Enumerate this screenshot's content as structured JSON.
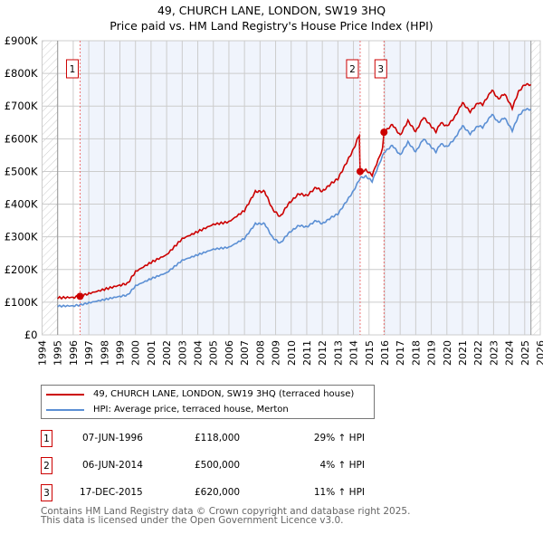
{
  "title": "49, CHURCH LANE, LONDON, SW19 3HQ",
  "subtitle": "Price paid vs. HM Land Registry's House Price Index (HPI)",
  "chart_data": {
    "type": "line",
    "xlim": [
      1994,
      2026
    ],
    "ylim": [
      0,
      900000
    ],
    "yticks": [
      0,
      100000,
      200000,
      300000,
      400000,
      500000,
      600000,
      700000,
      800000,
      900000
    ],
    "ytick_labels": [
      "£0",
      "£100K",
      "£200K",
      "£300K",
      "£400K",
      "£500K",
      "£600K",
      "£700K",
      "£800K",
      "£900K"
    ],
    "xtick_labels": [
      "1994",
      "1995",
      "1996",
      "1997",
      "1998",
      "1999",
      "2000",
      "2001",
      "2002",
      "2003",
      "2004",
      "2005",
      "2006",
      "2007",
      "2008",
      "2009",
      "2010",
      "2011",
      "2012",
      "2013",
      "2014",
      "2015",
      "2016",
      "2017",
      "2018",
      "2019",
      "2020",
      "2021",
      "2022",
      "2023",
      "2024",
      "2025",
      "2026"
    ],
    "data_range": [
      1995,
      2025.4
    ],
    "series": [
      {
        "name": "49, CHURCH LANE, LONDON, SW19 3HQ (terraced house)",
        "color": "#cc0000",
        "derived": "hpi_scaled_by_sale"
      },
      {
        "name": "HPI: Average price, terraced house, Merton",
        "color": "#5b8fd4",
        "x": [
          1995,
          1996,
          1996.44,
          1997,
          1998,
          1999,
          1999.5,
          2000,
          2001,
          2002,
          2003,
          2004,
          2005,
          2006,
          2007,
          2007.7,
          2008.3,
          2008.8,
          2009.3,
          2009.8,
          2010.5,
          2011,
          2011.6,
          2012,
          2012.6,
          2013,
          2013.5,
          2014,
          2014.43,
          2014.8,
          2015.2,
          2015.96,
          2016.5,
          2017,
          2017.5,
          2018,
          2018.5,
          2019,
          2019.3,
          2019.6,
          2020,
          2020.5,
          2021,
          2021.5,
          2022,
          2022.3,
          2022.9,
          2023.3,
          2023.7,
          2024.2,
          2024.6,
          2025,
          2025.4
        ],
        "y": [
          88000,
          89000,
          91500,
          98000,
          108000,
          118000,
          122000,
          150000,
          172000,
          190000,
          228000,
          245000,
          262000,
          268000,
          295000,
          340000,
          340000,
          298000,
          280000,
          310000,
          335000,
          330000,
          350000,
          340000,
          360000,
          370000,
          405000,
          440000,
          480000,
          485000,
          470000,
          558000,
          580000,
          550000,
          590000,
          560000,
          600000,
          575000,
          560000,
          585000,
          575000,
          600000,
          640000,
          615000,
          640000,
          635000,
          675000,
          650000,
          665000,
          625000,
          670000,
          690000,
          690000
        ]
      }
    ],
    "sales": [
      {
        "id": "1",
        "x": 1996.44,
        "price": 118000,
        "date": "07-JUN-1996",
        "price_label": "£118,000",
        "hpi_label": "29% ↑ HPI",
        "ratio": 1.29
      },
      {
        "id": "2",
        "x": 2014.43,
        "price": 500000,
        "date": "06-JUN-2014",
        "price_label": "£500,000",
        "hpi_label": "4% ↑ HPI",
        "ratio": 1.04
      },
      {
        "id": "3",
        "x": 2015.96,
        "price": 620000,
        "date": "17-DEC-2015",
        "price_label": "£620,000",
        "hpi_label": "11% ↑ HPI",
        "ratio": 1.11
      }
    ]
  },
  "footer": [
    "Contains HM Land Registry data © Crown copyright and database right 2025.",
    "This data is licensed under the Open Government Licence v3.0."
  ]
}
